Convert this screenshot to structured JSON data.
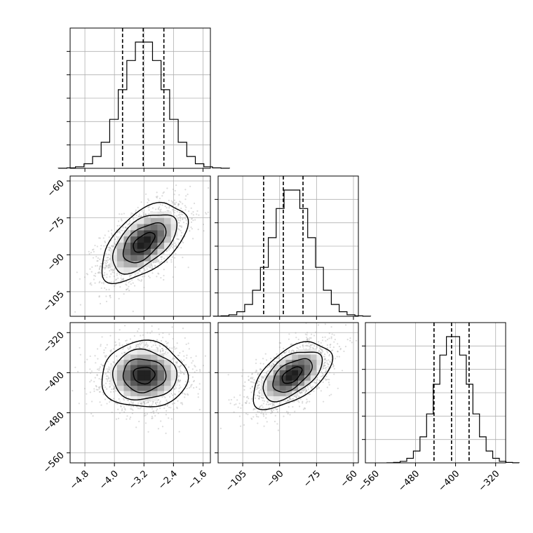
{
  "chart_data": {
    "type": "corner",
    "grid": true,
    "parameters": [
      {
        "range": [
          -5.2,
          -1.4
        ],
        "ticks": [
          -4.8,
          -4.0,
          -3.2,
          -2.4,
          -1.6
        ],
        "tick_labels": [
          "−4.8",
          "−4.0",
          "−3.2",
          "−2.4",
          "−1.6"
        ],
        "center": -3.2,
        "sd": 0.58,
        "quantiles": [
          -3.78,
          -3.22,
          -2.66
        ]
      },
      {
        "range": [
          -115,
          -58
        ],
        "ticks": [
          -105,
          -90,
          -75,
          -60
        ],
        "tick_labels": [
          "−105",
          "−90",
          "−75",
          "−60"
        ],
        "center": -85,
        "sd": 8.0,
        "quantiles": [
          -96.5,
          -88.5,
          -80.5
        ]
      },
      {
        "range": [
          -580,
          -300
        ],
        "ticks": [
          -560,
          -480,
          -400,
          -320
        ],
        "tick_labels": [
          "−560",
          "−480",
          "−400",
          "−320"
        ],
        "center": -405,
        "sd": 33,
        "quantiles": [
          -443,
          -408,
          -373
        ]
      }
    ],
    "correlations": {
      "1_0": 0.55,
      "2_0": 0.0,
      "2_1": 0.55
    },
    "hist_bins": 20,
    "contour_levels_sigma": [
      0.5,
      1.0,
      1.5,
      2.0
    ],
    "diagonal_panels": [
      {
        "param": 0,
        "label_y": false
      },
      {
        "param": 1,
        "label_y": false
      },
      {
        "param": 2,
        "label_y": false
      }
    ],
    "scatter_panels": [
      {
        "x_param": 0,
        "y_param": 1
      },
      {
        "x_param": 0,
        "y_param": 2
      },
      {
        "x_param": 1,
        "y_param": 2
      }
    ]
  }
}
